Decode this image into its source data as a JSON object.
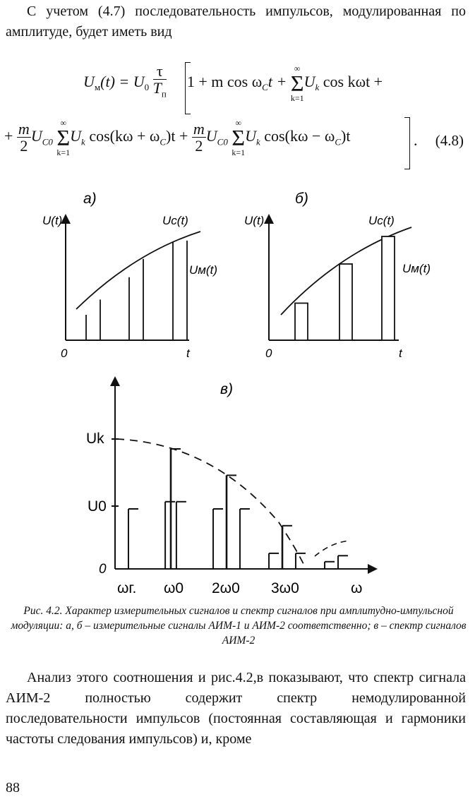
{
  "page": {
    "intro_text": "С учетом (4.7) последовательность импульсов, модулированная по амплитуде, будет иметь вид",
    "body_text": "Анализ этого соотношения и рис.4.2,в показывают, что спектр сигнала АИМ-2 полностью содержит спектр немодулированной последовательности импульсов (постоянная составляющая и гармоники частоты следования импульсов) и, кроме",
    "page_number": "88"
  },
  "equation": {
    "label": "(4.8)",
    "lhs": "U",
    "lhs_sub": "м",
    "lhs_arg": "(t) = U",
    "u0_sub": "0",
    "tau": "τ",
    "tp": "T",
    "tp_sub": "п",
    "term1": "1 + m cos ω",
    "c_sub": "C",
    "term1_tail": "t +",
    "sum_top": "∞",
    "sum_sym": "Σ",
    "sum_bot": "k=1",
    "uk": "U",
    "k_sub": "k",
    "term2": "cos kωt +",
    "line2_plus": "+",
    "m": "m",
    "two": "2",
    "uc0": "U",
    "c0_sub": "C0",
    "term3": "cos(kω + ω",
    "term3_tail": ")t +",
    "term4": "cos(kω − ω",
    "term4_tail": ")t",
    "end": "."
  },
  "figure": {
    "panel_a": {
      "label": "а)",
      "y_label": "U(t)",
      "uc_label": "Uc(t)",
      "um_label": "Uм(t)",
      "origin": "0",
      "x_label": "t",
      "chart_data": {
        "type": "bar",
        "series": [
          {
            "values": [
              0.25,
              0.4,
              0.62,
              0.8,
              0.97
            ]
          }
        ]
      }
    },
    "panel_b": {
      "label": "б)",
      "y_label": "U(t)",
      "uc_label": "Uc(t)",
      "um_label": "Uм(t)",
      "origin": "0",
      "x_label": "t",
      "chart_data": {
        "type": "bar",
        "series": [
          {
            "values": [
              0.35,
              0.72,
              0.98
            ]
          }
        ]
      }
    },
    "panel_c": {
      "label": "в)",
      "uk_label": "Uk",
      "u0_label": "U0",
      "origin": "0",
      "x_ticks": [
        "ωг.",
        "ω0",
        "2ω0",
        "3ω0",
        "ω"
      ],
      "chart_data": {
        "type": "bar",
        "lines": [
          {
            "x": 0.24,
            "y": 0.5,
            "tall": false
          },
          {
            "x": 0.9,
            "y": 0.56,
            "tall": false
          },
          {
            "x": 1.0,
            "y": 1.0,
            "tall": true
          },
          {
            "x": 1.1,
            "y": 0.56,
            "tall": false
          },
          {
            "x": 1.76,
            "y": 0.5,
            "tall": false
          },
          {
            "x": 2.0,
            "y": 0.78,
            "tall": true
          },
          {
            "x": 2.24,
            "y": 0.5,
            "tall": false
          },
          {
            "x": 2.76,
            "y": 0.13,
            "tall": false
          },
          {
            "x": 3.0,
            "y": 0.36,
            "tall": true
          },
          {
            "x": 3.24,
            "y": 0.13,
            "tall": false
          },
          {
            "x": 3.76,
            "y": 0.06,
            "tall": false
          },
          {
            "x": 4.0,
            "y": 0.11,
            "tall": false
          }
        ]
      }
    },
    "caption": "Рис. 4.2. Характер измерительных сигналов и спектр сигналов при амплитудно-импульсной модуляции: а, б – измерительные сигналы АИМ-1 и АИМ-2 соответственно; в – спектр сигналов АИМ-2"
  }
}
